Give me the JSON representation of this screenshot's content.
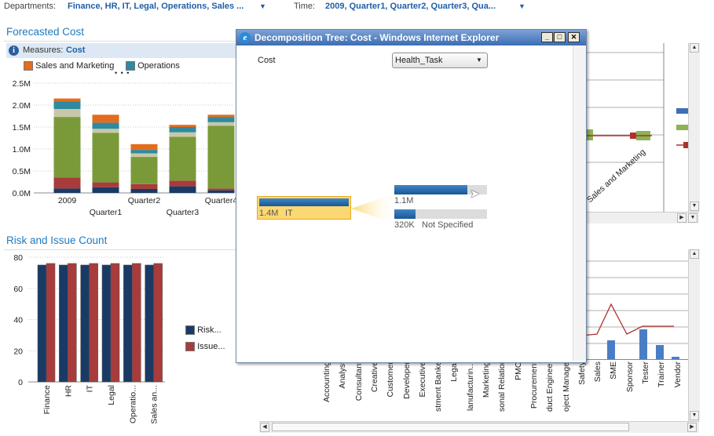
{
  "filters": {
    "departments_label": "Departments:",
    "departments_value": "Finance, HR, IT, Legal, Operations, Sales ...",
    "time_label": "Time:",
    "time_value": "2009, Quarter1, Quarter2, Quarter3, Qua..."
  },
  "forecast": {
    "title": "Forecasted Cost",
    "measures_label": "Measures:",
    "measures_value": "Cost",
    "legend": [
      {
        "name": "Sales and Marketing",
        "color": "#e46c1c"
      },
      {
        "name": "Operations",
        "color": "#2e8aa0"
      }
    ],
    "legend_more": "• • •",
    "yticks": [
      "2.5M",
      "2.0M",
      "1.5M",
      "1.0M",
      "0.5M",
      "0.0M"
    ],
    "xlabels_top": [
      "2009",
      "Quarter2",
      "Quarter4"
    ],
    "xlabels_bottom": [
      "Quarter1",
      "Quarter3"
    ]
  },
  "risk": {
    "title": "Risk and Issue Count",
    "yticks": [
      "80",
      "60",
      "40",
      "20",
      "0"
    ],
    "legend": [
      {
        "name": "Risk...",
        "color": "#1a3a66"
      },
      {
        "name": "Issue...",
        "color": "#a83c3c"
      }
    ]
  },
  "decomp_window": {
    "title": "Decomposition Tree: Cost - Windows Internet Explorer",
    "cost_label": "Cost",
    "dropdown_value": "Health_Task",
    "root_value": "1.4M",
    "root_label": "IT",
    "child1_value": "1.1M",
    "child1_label": "",
    "child1_fraction": 0.79,
    "child2_value": "320K",
    "child2_label": "Not Specified",
    "child2_fraction": 0.23
  },
  "right_chart": {
    "partial_label": "Sales and Marketing"
  },
  "resource_chart": {
    "categories": [
      "Accounting",
      "Analyst",
      "Consultant",
      "Creative",
      "Customer",
      "Developer",
      "Executive",
      "stment Banker",
      "Legal",
      "lanufacturin...",
      "Marketing",
      "sonal Relation",
      "PMO",
      "Procurement",
      "duct Engineer",
      "oject Manager",
      "Safety",
      "Sales",
      "SME",
      "Sponsor",
      "Tester",
      "Trainer",
      "Vendor"
    ]
  },
  "chart_data": [
    {
      "type": "bar",
      "title": "Forecasted Cost",
      "categories": [
        "2009",
        "Quarter1",
        "Quarter2",
        "Quarter3",
        "Quarter4"
      ],
      "ylim": [
        0,
        2500000
      ],
      "stacked": true,
      "series": [
        {
          "name": "",
          "color": "#1a3a66",
          "values": [
            100000,
            130000,
            90000,
            150000,
            60000
          ]
        },
        {
          "name": "",
          "color": "#a83c3c",
          "values": [
            250000,
            110000,
            110000,
            130000,
            40000
          ]
        },
        {
          "name": "",
          "color": "#7a9a3a",
          "values": [
            1380000,
            1130000,
            620000,
            1000000,
            1430000
          ]
        },
        {
          "name": "",
          "color": "#c8c8a8",
          "values": [
            180000,
            90000,
            80000,
            100000,
            80000
          ]
        },
        {
          "name": "Operations",
          "color": "#2e8aa0",
          "values": [
            170000,
            140000,
            80000,
            120000,
            120000
          ]
        },
        {
          "name": "Sales and Marketing",
          "color": "#e46c1c",
          "values": [
            70000,
            180000,
            130000,
            50000,
            50000
          ]
        }
      ]
    },
    {
      "type": "bar",
      "title": "Risk and Issue Count",
      "categories": [
        "Finance",
        "HR",
        "IT",
        "Legal",
        "Operatio...",
        "Sales an..."
      ],
      "ylim": [
        0,
        80
      ],
      "series": [
        {
          "name": "Risk...",
          "color": "#1a3a66",
          "values": [
            75,
            75,
            75,
            75,
            75,
            75
          ]
        },
        {
          "name": "Issue...",
          "color": "#a83c3c",
          "values": [
            76,
            76,
            76,
            76,
            76,
            76
          ]
        }
      ]
    }
  ]
}
